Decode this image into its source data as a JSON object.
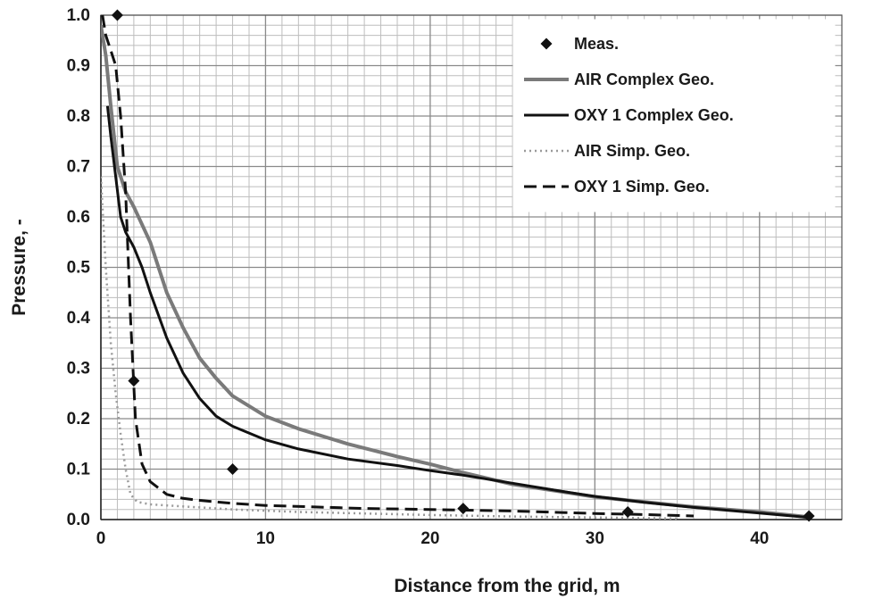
{
  "chart_data": {
    "type": "line",
    "xlabel": "Distance from the grid, m",
    "ylabel": "Pressure, -",
    "xlim": [
      0,
      45
    ],
    "ylim": [
      0,
      1.0
    ],
    "x_major_ticks": [
      0,
      10,
      20,
      30,
      40
    ],
    "y_major_ticks": [
      0.0,
      0.1,
      0.2,
      0.3,
      0.4,
      0.5,
      0.6,
      0.7,
      0.8,
      0.9,
      1.0
    ],
    "x_tick_labels": [
      "0",
      "10",
      "20",
      "30",
      "40"
    ],
    "y_tick_labels": [
      "0.0",
      "0.1",
      "0.2",
      "0.3",
      "0.4",
      "0.5",
      "0.6",
      "0.7",
      "0.8",
      "0.9",
      "1.0"
    ],
    "x_minor_step": 1,
    "y_minor_step": 0.02,
    "grid": true,
    "legend_position": "top-right",
    "series": [
      {
        "name": "Meas.",
        "kind": "marker",
        "marker": "diamond",
        "color": "#111111",
        "points": [
          [
            1,
            1.0
          ],
          [
            2,
            0.275
          ],
          [
            8,
            0.1
          ],
          [
            22,
            0.022
          ],
          [
            32,
            0.015
          ],
          [
            43,
            0.007
          ]
        ]
      },
      {
        "name": "AIR Complex Geo.",
        "kind": "line",
        "color": "#7a7a7a",
        "dash": "solid",
        "width": 4,
        "points": [
          [
            0,
            0.98
          ],
          [
            0.3,
            0.92
          ],
          [
            0.6,
            0.82
          ],
          [
            1,
            0.7
          ],
          [
            1.5,
            0.65
          ],
          [
            2,
            0.62
          ],
          [
            3,
            0.55
          ],
          [
            4,
            0.45
          ],
          [
            5,
            0.38
          ],
          [
            6,
            0.32
          ],
          [
            7,
            0.28
          ],
          [
            8,
            0.245
          ],
          [
            10,
            0.205
          ],
          [
            12,
            0.18
          ],
          [
            15,
            0.15
          ],
          [
            18,
            0.125
          ],
          [
            20,
            0.11
          ],
          [
            22,
            0.093
          ],
          [
            25,
            0.07
          ],
          [
            28,
            0.055
          ],
          [
            30,
            0.045
          ],
          [
            33,
            0.035
          ],
          [
            36,
            0.025
          ],
          [
            40,
            0.015
          ],
          [
            43,
            0.005
          ]
        ]
      },
      {
        "name": "OXY 1 Complex Geo.",
        "kind": "line",
        "color": "#111111",
        "dash": "solid",
        "width": 3,
        "points": [
          [
            0.4,
            0.82
          ],
          [
            0.6,
            0.76
          ],
          [
            0.9,
            0.68
          ],
          [
            1.2,
            0.6
          ],
          [
            1.5,
            0.57
          ],
          [
            2,
            0.54
          ],
          [
            2.5,
            0.5
          ],
          [
            3,
            0.45
          ],
          [
            4,
            0.36
          ],
          [
            5,
            0.29
          ],
          [
            6,
            0.24
          ],
          [
            7,
            0.205
          ],
          [
            8,
            0.185
          ],
          [
            10,
            0.158
          ],
          [
            12,
            0.14
          ],
          [
            15,
            0.12
          ],
          [
            18,
            0.107
          ],
          [
            20,
            0.097
          ],
          [
            22,
            0.088
          ],
          [
            25,
            0.072
          ],
          [
            28,
            0.056
          ],
          [
            30,
            0.046
          ],
          [
            33,
            0.034
          ],
          [
            36,
            0.024
          ],
          [
            40,
            0.013
          ],
          [
            43,
            0.004
          ]
        ]
      },
      {
        "name": "AIR Simp. Geo.",
        "kind": "line",
        "color": "#9a9a9a",
        "dash": "dotted",
        "width": 2.5,
        "points": [
          [
            0,
            0.68
          ],
          [
            0.3,
            0.5
          ],
          [
            0.6,
            0.35
          ],
          [
            0.9,
            0.25
          ],
          [
            1.2,
            0.17
          ],
          [
            1.5,
            0.1
          ],
          [
            1.8,
            0.05
          ],
          [
            2.2,
            0.035
          ],
          [
            3,
            0.03
          ],
          [
            4,
            0.028
          ],
          [
            6,
            0.024
          ],
          [
            8,
            0.02
          ],
          [
            12,
            0.015
          ],
          [
            16,
            0.012
          ],
          [
            20,
            0.009
          ],
          [
            25,
            0.006
          ],
          [
            30,
            0.004
          ],
          [
            35,
            0.002
          ]
        ]
      },
      {
        "name": "OXY 1 Simp. Geo.",
        "kind": "line",
        "color": "#111111",
        "dash": "dashed",
        "width": 3,
        "points": [
          [
            0.1,
            1.0
          ],
          [
            0.3,
            0.96
          ],
          [
            0.6,
            0.93
          ],
          [
            0.9,
            0.9
          ],
          [
            1.2,
            0.8
          ],
          [
            1.5,
            0.65
          ],
          [
            1.8,
            0.4
          ],
          [
            2.1,
            0.2
          ],
          [
            2.5,
            0.11
          ],
          [
            3,
            0.075
          ],
          [
            4,
            0.05
          ],
          [
            5,
            0.042
          ],
          [
            6,
            0.038
          ],
          [
            7,
            0.035
          ],
          [
            8,
            0.032
          ],
          [
            10,
            0.028
          ],
          [
            13,
            0.025
          ],
          [
            16,
            0.022
          ],
          [
            20,
            0.02
          ],
          [
            25,
            0.017
          ],
          [
            28,
            0.014
          ],
          [
            30,
            0.012
          ],
          [
            33,
            0.01
          ],
          [
            36,
            0.007
          ]
        ]
      }
    ]
  }
}
